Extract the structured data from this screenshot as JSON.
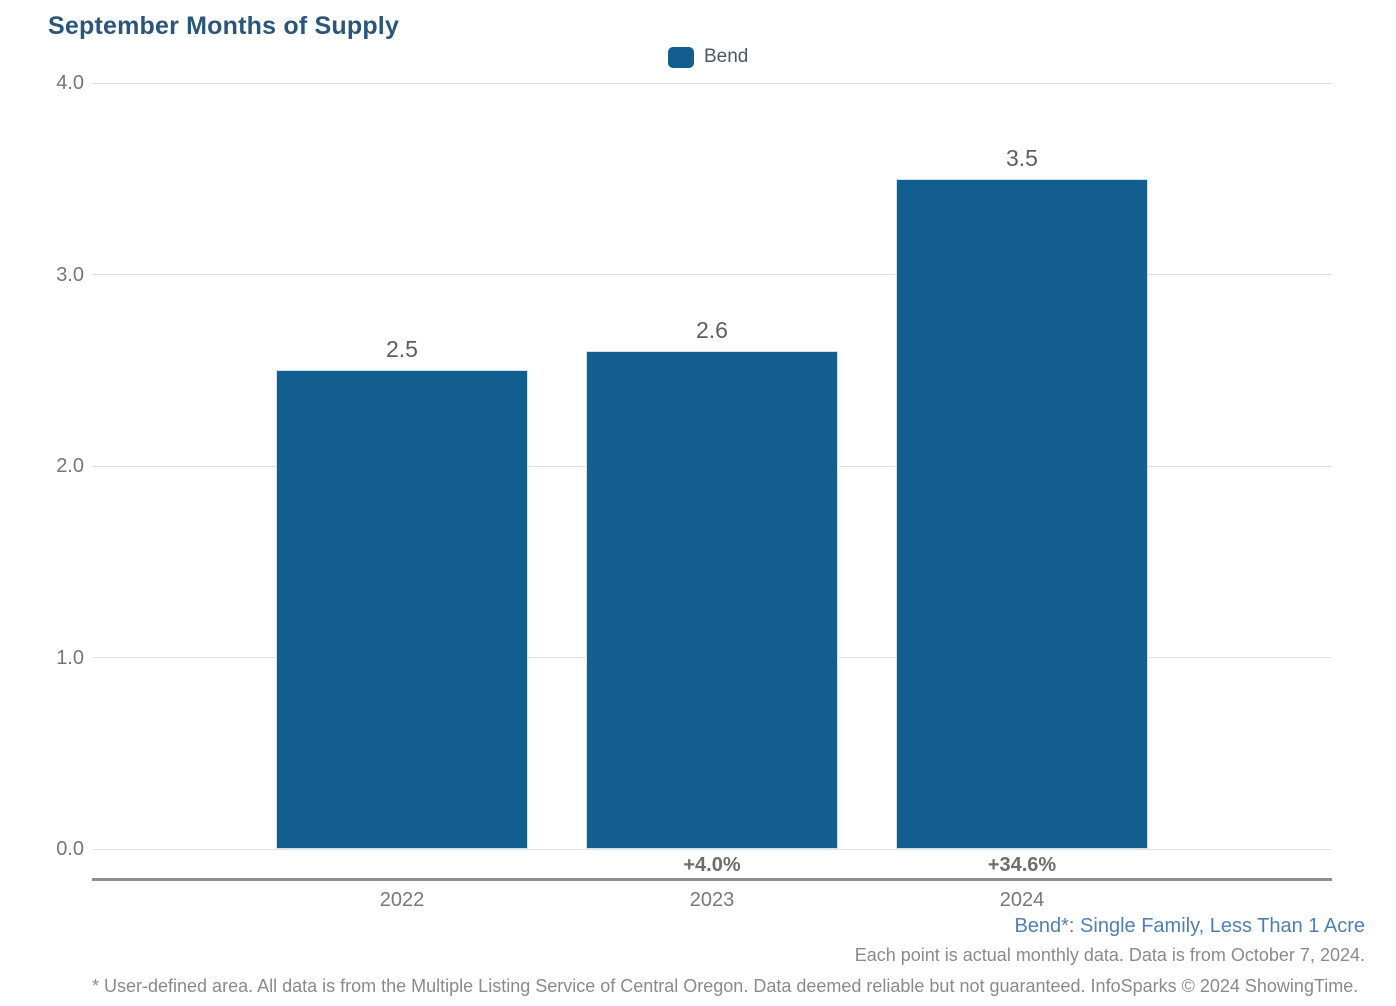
{
  "title": "September Months of Supply",
  "legend": {
    "label": "Bend",
    "swatch_color": "#115e8f"
  },
  "chart_data": {
    "type": "bar",
    "title": "September Months of Supply",
    "categories": [
      "2022",
      "2023",
      "2024"
    ],
    "series": [
      {
        "name": "Bend",
        "values": [
          2.5,
          2.6,
          3.5
        ]
      }
    ],
    "value_labels": [
      "2.5",
      "2.6",
      "3.5"
    ],
    "pct_change_labels": [
      "",
      "+4.0%",
      "+34.6%"
    ],
    "xlabel": "",
    "ylabel": "",
    "ylim": [
      0,
      4
    ],
    "yticks": [
      "0.0",
      "1.0",
      "2.0",
      "3.0",
      "4.0"
    ],
    "grid": true,
    "legend_position": "top-center",
    "bar_color": "#115e8f",
    "gridline_color": "#e2e2e2"
  },
  "footnotes": {
    "series_note": "Bend*: Single Family, Less Than 1 Acre",
    "data_note": "Each point is actual monthly data. Data is from October 7, 2024.",
    "disclaimer": "* User-defined area. All data is from the Multiple Listing Service of Central Oregon. Data deemed reliable but not guaranteed. InfoSparks © 2024 ShowingTime."
  }
}
